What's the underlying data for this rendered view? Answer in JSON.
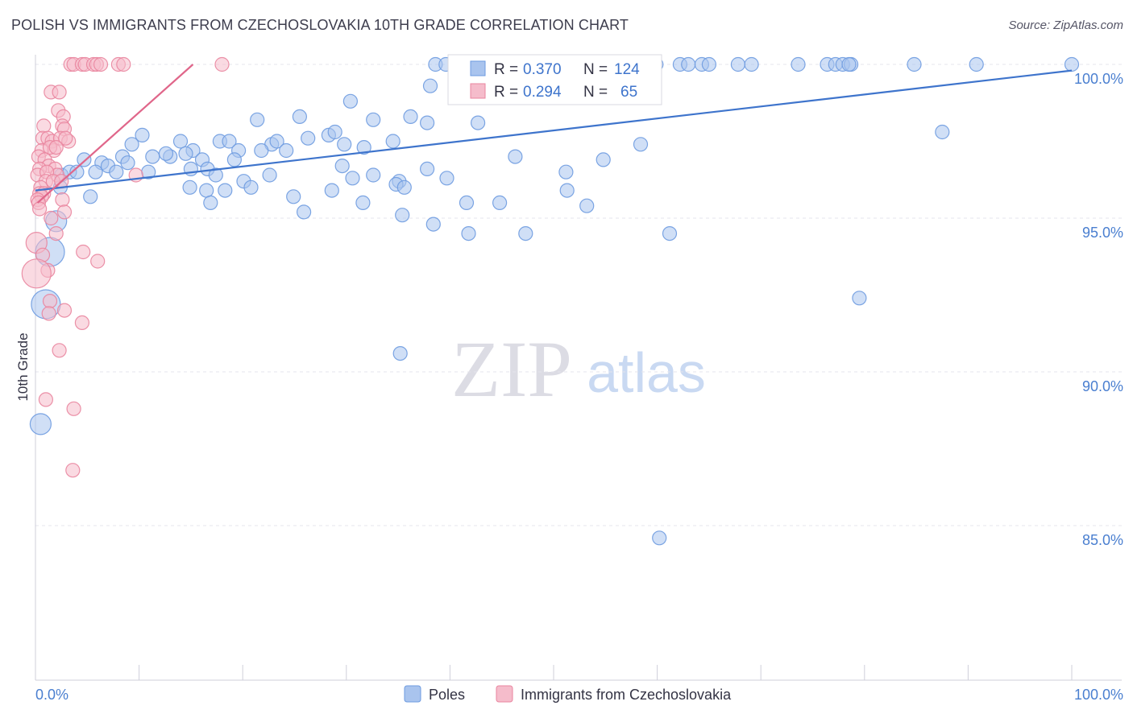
{
  "title": "POLISH VS IMMIGRANTS FROM CZECHOSLOVAKIA 10TH GRADE CORRELATION CHART",
  "source": "Source: ZipAtlas.com",
  "watermark": {
    "zip": "ZIP",
    "atlas": "atlas"
  },
  "chart_data": {
    "type": "scatter",
    "title": "POLISH VS IMMIGRANTS FROM CZECHOSLOVAKIA 10TH GRADE CORRELATION CHART",
    "xlabel": "",
    "ylabel": "10th Grade",
    "xlim": [
      0,
      100
    ],
    "ylim": [
      80.5,
      100.5
    ],
    "x_tick_labels": [
      "0.0%",
      "100.0%"
    ],
    "y_ticks": [
      {
        "value": 100,
        "label": "100.0%"
      },
      {
        "value": 95,
        "label": "95.0%"
      },
      {
        "value": 90,
        "label": "90.0%"
      },
      {
        "value": 85,
        "label": "85.0%"
      }
    ],
    "grid": true,
    "legend_position": "bottom-center",
    "stats": [
      {
        "r_label": "R =",
        "r_value": "0.370",
        "n_label": "N =",
        "n_value": "124"
      },
      {
        "r_label": "R =",
        "r_value": "0.294",
        "n_label": "N =",
        "n_value": "65"
      }
    ],
    "series": [
      {
        "name": "Poles",
        "color": "#6e9be0",
        "fill": "#a9c4ee",
        "trendline": {
          "x": [
            0,
            100
          ],
          "y": [
            95.9,
            99.8
          ]
        },
        "points": [
          {
            "x": 38.6,
            "y": 100,
            "s": 1
          },
          {
            "x": 39.6,
            "y": 100,
            "s": 1
          },
          {
            "x": 41.0,
            "y": 100,
            "s": 1
          },
          {
            "x": 41.5,
            "y": 100,
            "s": 1
          },
          {
            "x": 43.7,
            "y": 100,
            "s": 1
          },
          {
            "x": 44.1,
            "y": 100,
            "s": 1
          },
          {
            "x": 45.6,
            "y": 100,
            "s": 1
          },
          {
            "x": 47.0,
            "y": 100,
            "s": 1
          },
          {
            "x": 47.7,
            "y": 100,
            "s": 1
          },
          {
            "x": 49.2,
            "y": 100,
            "s": 1
          },
          {
            "x": 50.3,
            "y": 100,
            "s": 1
          },
          {
            "x": 51.6,
            "y": 100,
            "s": 1
          },
          {
            "x": 52.3,
            "y": 100,
            "s": 1
          },
          {
            "x": 53.8,
            "y": 100,
            "s": 1
          },
          {
            "x": 54.9,
            "y": 100,
            "s": 1
          },
          {
            "x": 56.2,
            "y": 100,
            "s": 1
          },
          {
            "x": 57.2,
            "y": 100,
            "s": 1
          },
          {
            "x": 58.4,
            "y": 100,
            "s": 1
          },
          {
            "x": 59.9,
            "y": 100,
            "s": 1
          },
          {
            "x": 62.2,
            "y": 100,
            "s": 1
          },
          {
            "x": 63.0,
            "y": 100,
            "s": 1
          },
          {
            "x": 64.3,
            "y": 100,
            "s": 1
          },
          {
            "x": 65.0,
            "y": 100,
            "s": 1
          },
          {
            "x": 67.8,
            "y": 100,
            "s": 1
          },
          {
            "x": 69.1,
            "y": 100,
            "s": 1
          },
          {
            "x": 73.6,
            "y": 100,
            "s": 1
          },
          {
            "x": 76.4,
            "y": 100,
            "s": 1
          },
          {
            "x": 77.2,
            "y": 100,
            "s": 1
          },
          {
            "x": 77.9,
            "y": 100,
            "s": 1
          },
          {
            "x": 78.7,
            "y": 100,
            "s": 1
          },
          {
            "x": 78.5,
            "y": 100,
            "s": 1
          },
          {
            "x": 84.8,
            "y": 100,
            "s": 1
          },
          {
            "x": 90.8,
            "y": 100,
            "s": 1
          },
          {
            "x": 100,
            "y": 100,
            "s": 1
          },
          {
            "x": 38.1,
            "y": 99.3,
            "s": 1
          },
          {
            "x": 41.1,
            "y": 99.6,
            "s": 1
          },
          {
            "x": 43.6,
            "y": 99.5,
            "s": 1
          },
          {
            "x": 54.3,
            "y": 99.5,
            "s": 1
          },
          {
            "x": 56.4,
            "y": 99.2,
            "s": 1
          },
          {
            "x": 30.4,
            "y": 98.8,
            "s": 1
          },
          {
            "x": 36.2,
            "y": 98.3,
            "s": 1
          },
          {
            "x": 32.6,
            "y": 98.2,
            "s": 1
          },
          {
            "x": 37.8,
            "y": 98.1,
            "s": 1
          },
          {
            "x": 42.7,
            "y": 98.1,
            "s": 1
          },
          {
            "x": 21.4,
            "y": 98.2,
            "s": 1
          },
          {
            "x": 25.5,
            "y": 98.3,
            "s": 1
          },
          {
            "x": 87.5,
            "y": 97.8,
            "s": 1
          },
          {
            "x": 10.3,
            "y": 97.7,
            "s": 1
          },
          {
            "x": 14.0,
            "y": 97.5,
            "s": 1
          },
          {
            "x": 17.8,
            "y": 97.5,
            "s": 1
          },
          {
            "x": 18.7,
            "y": 97.5,
            "s": 1
          },
          {
            "x": 22.8,
            "y": 97.4,
            "s": 1
          },
          {
            "x": 23.3,
            "y": 97.5,
            "s": 1
          },
          {
            "x": 26.3,
            "y": 97.6,
            "s": 1
          },
          {
            "x": 28.3,
            "y": 97.7,
            "s": 1
          },
          {
            "x": 28.9,
            "y": 97.8,
            "s": 1
          },
          {
            "x": 29.8,
            "y": 97.4,
            "s": 1
          },
          {
            "x": 31.7,
            "y": 97.3,
            "s": 1
          },
          {
            "x": 34.5,
            "y": 97.5,
            "s": 1
          },
          {
            "x": 58.4,
            "y": 97.4,
            "s": 1
          },
          {
            "x": 9.3,
            "y": 97.4,
            "s": 1
          },
          {
            "x": 11.3,
            "y": 97.0,
            "s": 1
          },
          {
            "x": 13.0,
            "y": 97.0,
            "s": 1
          },
          {
            "x": 15.2,
            "y": 97.2,
            "s": 1
          },
          {
            "x": 19.6,
            "y": 97.2,
            "s": 1
          },
          {
            "x": 21.8,
            "y": 97.2,
            "s": 1
          },
          {
            "x": 24.2,
            "y": 97.2,
            "s": 1
          },
          {
            "x": 8.4,
            "y": 97.0,
            "s": 1
          },
          {
            "x": 12.6,
            "y": 97.1,
            "s": 1
          },
          {
            "x": 14.5,
            "y": 97.1,
            "s": 1
          },
          {
            "x": 4.7,
            "y": 96.9,
            "s": 1
          },
          {
            "x": 6.4,
            "y": 96.8,
            "s": 1
          },
          {
            "x": 7.0,
            "y": 96.7,
            "s": 1
          },
          {
            "x": 8.9,
            "y": 96.8,
            "s": 1
          },
          {
            "x": 16.1,
            "y": 96.9,
            "s": 1
          },
          {
            "x": 19.2,
            "y": 96.9,
            "s": 1
          },
          {
            "x": 15.0,
            "y": 96.6,
            "s": 1
          },
          {
            "x": 16.6,
            "y": 96.6,
            "s": 1
          },
          {
            "x": 29.6,
            "y": 96.7,
            "s": 1
          },
          {
            "x": 46.3,
            "y": 97.0,
            "s": 1
          },
          {
            "x": 54.8,
            "y": 96.9,
            "s": 1
          },
          {
            "x": 2.5,
            "y": 96.4,
            "s": 1
          },
          {
            "x": 3.3,
            "y": 96.5,
            "s": 1
          },
          {
            "x": 4.0,
            "y": 96.5,
            "s": 1
          },
          {
            "x": 5.8,
            "y": 96.5,
            "s": 1
          },
          {
            "x": 7.8,
            "y": 96.5,
            "s": 1
          },
          {
            "x": 10.9,
            "y": 96.5,
            "s": 1
          },
          {
            "x": 17.4,
            "y": 96.4,
            "s": 1
          },
          {
            "x": 22.6,
            "y": 96.4,
            "s": 1
          },
          {
            "x": 30.6,
            "y": 96.3,
            "s": 1
          },
          {
            "x": 32.6,
            "y": 96.4,
            "s": 1
          },
          {
            "x": 35.1,
            "y": 96.2,
            "s": 1
          },
          {
            "x": 37.8,
            "y": 96.6,
            "s": 1
          },
          {
            "x": 39.7,
            "y": 96.3,
            "s": 1
          },
          {
            "x": 51.2,
            "y": 96.5,
            "s": 1
          },
          {
            "x": 20.1,
            "y": 96.2,
            "s": 1
          },
          {
            "x": 2.4,
            "y": 96.0,
            "s": 1
          },
          {
            "x": 14.9,
            "y": 96.0,
            "s": 1
          },
          {
            "x": 16.5,
            "y": 95.9,
            "s": 1
          },
          {
            "x": 18.3,
            "y": 95.9,
            "s": 1
          },
          {
            "x": 20.8,
            "y": 96.0,
            "s": 1
          },
          {
            "x": 28.6,
            "y": 95.9,
            "s": 1
          },
          {
            "x": 34.8,
            "y": 96.1,
            "s": 1
          },
          {
            "x": 35.6,
            "y": 96.0,
            "s": 1
          },
          {
            "x": 51.3,
            "y": 95.9,
            "s": 1
          },
          {
            "x": 5.3,
            "y": 95.7,
            "s": 1
          },
          {
            "x": 16.9,
            "y": 95.5,
            "s": 1
          },
          {
            "x": 24.9,
            "y": 95.7,
            "s": 1
          },
          {
            "x": 31.6,
            "y": 95.5,
            "s": 1
          },
          {
            "x": 41.6,
            "y": 95.5,
            "s": 1
          },
          {
            "x": 44.8,
            "y": 95.5,
            "s": 1
          },
          {
            "x": 53.2,
            "y": 95.4,
            "s": 1
          },
          {
            "x": 25.9,
            "y": 95.2,
            "s": 1
          },
          {
            "x": 35.4,
            "y": 95.1,
            "s": 1
          },
          {
            "x": 2.0,
            "y": 94.9,
            "s": 2
          },
          {
            "x": 38.4,
            "y": 94.8,
            "s": 1
          },
          {
            "x": 41.8,
            "y": 94.5,
            "s": 1
          },
          {
            "x": 47.3,
            "y": 94.5,
            "s": 1
          },
          {
            "x": 61.2,
            "y": 94.5,
            "s": 1
          },
          {
            "x": 1.4,
            "y": 93.9,
            "s": 3
          },
          {
            "x": 79.5,
            "y": 92.4,
            "s": 1
          },
          {
            "x": 1.0,
            "y": 92.2,
            "s": 3
          },
          {
            "x": 35.2,
            "y": 90.6,
            "s": 1
          },
          {
            "x": 0.5,
            "y": 88.3,
            "s": 2
          },
          {
            "x": 60.2,
            "y": 84.6,
            "s": 1
          }
        ]
      },
      {
        "name": "Immigrants from Czechoslovakia",
        "color": "#e9859f",
        "fill": "#f5bccb",
        "trendline": {
          "x": [
            0.2,
            15.2
          ],
          "y": [
            95.5,
            100.0
          ]
        },
        "points": [
          {
            "x": 3.4,
            "y": 100,
            "s": 1
          },
          {
            "x": 3.7,
            "y": 100,
            "s": 1
          },
          {
            "x": 4.5,
            "y": 100,
            "s": 1
          },
          {
            "x": 4.8,
            "y": 100,
            "s": 1
          },
          {
            "x": 5.6,
            "y": 100,
            "s": 1
          },
          {
            "x": 5.9,
            "y": 100,
            "s": 1
          },
          {
            "x": 6.3,
            "y": 100,
            "s": 1
          },
          {
            "x": 8.0,
            "y": 100,
            "s": 1
          },
          {
            "x": 8.5,
            "y": 100,
            "s": 1
          },
          {
            "x": 18.0,
            "y": 100,
            "s": 1
          },
          {
            "x": 1.5,
            "y": 99.1,
            "s": 1
          },
          {
            "x": 2.3,
            "y": 99.1,
            "s": 1
          },
          {
            "x": 2.2,
            "y": 98.5,
            "s": 1
          },
          {
            "x": 2.7,
            "y": 98.3,
            "s": 1
          },
          {
            "x": 0.8,
            "y": 98.0,
            "s": 1
          },
          {
            "x": 2.6,
            "y": 98.0,
            "s": 1
          },
          {
            "x": 2.8,
            "y": 97.9,
            "s": 1
          },
          {
            "x": 0.7,
            "y": 97.6,
            "s": 1
          },
          {
            "x": 1.2,
            "y": 97.6,
            "s": 1
          },
          {
            "x": 1.6,
            "y": 97.5,
            "s": 1
          },
          {
            "x": 2.4,
            "y": 97.6,
            "s": 1
          },
          {
            "x": 3.2,
            "y": 97.5,
            "s": 1
          },
          {
            "x": 1.8,
            "y": 97.2,
            "s": 1
          },
          {
            "x": 2.9,
            "y": 97.6,
            "s": 1
          },
          {
            "x": 0.6,
            "y": 97.2,
            "s": 1
          },
          {
            "x": 1.4,
            "y": 97.3,
            "s": 1
          },
          {
            "x": 2.0,
            "y": 97.3,
            "s": 1
          },
          {
            "x": 0.3,
            "y": 97.0,
            "s": 1
          },
          {
            "x": 0.9,
            "y": 96.9,
            "s": 1
          },
          {
            "x": 1.3,
            "y": 96.7,
            "s": 1
          },
          {
            "x": 0.4,
            "y": 96.6,
            "s": 1
          },
          {
            "x": 1.9,
            "y": 96.6,
            "s": 1
          },
          {
            "x": 2.1,
            "y": 96.4,
            "s": 1
          },
          {
            "x": 0.2,
            "y": 96.4,
            "s": 1
          },
          {
            "x": 1.1,
            "y": 96.5,
            "s": 1
          },
          {
            "x": 1.0,
            "y": 96.2,
            "s": 1
          },
          {
            "x": 1.7,
            "y": 96.2,
            "s": 1
          },
          {
            "x": 2.5,
            "y": 96.2,
            "s": 1
          },
          {
            "x": 9.7,
            "y": 96.4,
            "s": 1
          },
          {
            "x": 0.5,
            "y": 96.0,
            "s": 1
          },
          {
            "x": 0.4,
            "y": 95.8,
            "s": 1
          },
          {
            "x": 0.8,
            "y": 95.8,
            "s": 1
          },
          {
            "x": 0.6,
            "y": 95.7,
            "s": 1
          },
          {
            "x": 0.2,
            "y": 95.6,
            "s": 1
          },
          {
            "x": 2.6,
            "y": 95.6,
            "s": 1
          },
          {
            "x": 0.3,
            "y": 95.5,
            "s": 1
          },
          {
            "x": 0.4,
            "y": 95.3,
            "s": 1
          },
          {
            "x": 2.8,
            "y": 95.2,
            "s": 1
          },
          {
            "x": 1.5,
            "y": 95.0,
            "s": 1
          },
          {
            "x": 2.0,
            "y": 94.5,
            "s": 1
          },
          {
            "x": 0.1,
            "y": 94.2,
            "s": 2
          },
          {
            "x": 0.7,
            "y": 93.8,
            "s": 1
          },
          {
            "x": 4.6,
            "y": 93.9,
            "s": 1
          },
          {
            "x": 6.0,
            "y": 93.6,
            "s": 1
          },
          {
            "x": 1.2,
            "y": 93.3,
            "s": 1
          },
          {
            "x": 0.1,
            "y": 93.2,
            "s": 3
          },
          {
            "x": 1.4,
            "y": 92.3,
            "s": 1
          },
          {
            "x": 2.8,
            "y": 92.0,
            "s": 1
          },
          {
            "x": 1.3,
            "y": 91.9,
            "s": 1
          },
          {
            "x": 4.5,
            "y": 91.6,
            "s": 1
          },
          {
            "x": 2.3,
            "y": 90.7,
            "s": 1
          },
          {
            "x": 1.0,
            "y": 89.1,
            "s": 1
          },
          {
            "x": 3.7,
            "y": 88.8,
            "s": 1
          },
          {
            "x": 3.6,
            "y": 86.8,
            "s": 1
          }
        ]
      }
    ]
  }
}
